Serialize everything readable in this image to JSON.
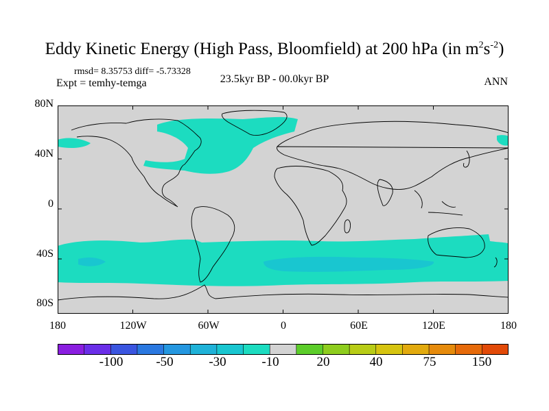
{
  "title": {
    "main": "Eddy Kinetic Energy (High Pass, Bloomfield) at 200 hPa (in m",
    "sup1": "2",
    "mid": "s",
    "sup2": "-2",
    "end": ")"
  },
  "stats": "rmsd= 8.35753 diff= -5.73328",
  "expt": "Expt = temhy-temga",
  "period": "23.5kyr BP - 00.0kyr BP",
  "season": "ANN",
  "lat_labels": [
    "80N",
    "40N",
    "0",
    "40S",
    "80S"
  ],
  "lon_labels": [
    "180",
    "120W",
    "60W",
    "0",
    "60E",
    "120E",
    "180"
  ],
  "colorbar": {
    "colors": [
      "#8a1ee0",
      "#6a2ee8",
      "#3a55e0",
      "#2a78e0",
      "#2497e0",
      "#1fb2d8",
      "#19c6d0",
      "#1cdcc0",
      "#d3d3d3",
      "#5ccd2a",
      "#8ecd1e",
      "#b8cc16",
      "#d6c410",
      "#e2aa0e",
      "#e68b0c",
      "#e66a0a",
      "#e24a08"
    ],
    "labels": [
      "-100",
      "-50",
      "-30",
      "-10",
      "20",
      "40",
      "75",
      "150"
    ]
  },
  "colors": {
    "land_bg": "#d3d3d3",
    "eke_cyan": "#1cdcc0",
    "eke_lightblue": "#19c6d0",
    "coast": "#000000"
  }
}
